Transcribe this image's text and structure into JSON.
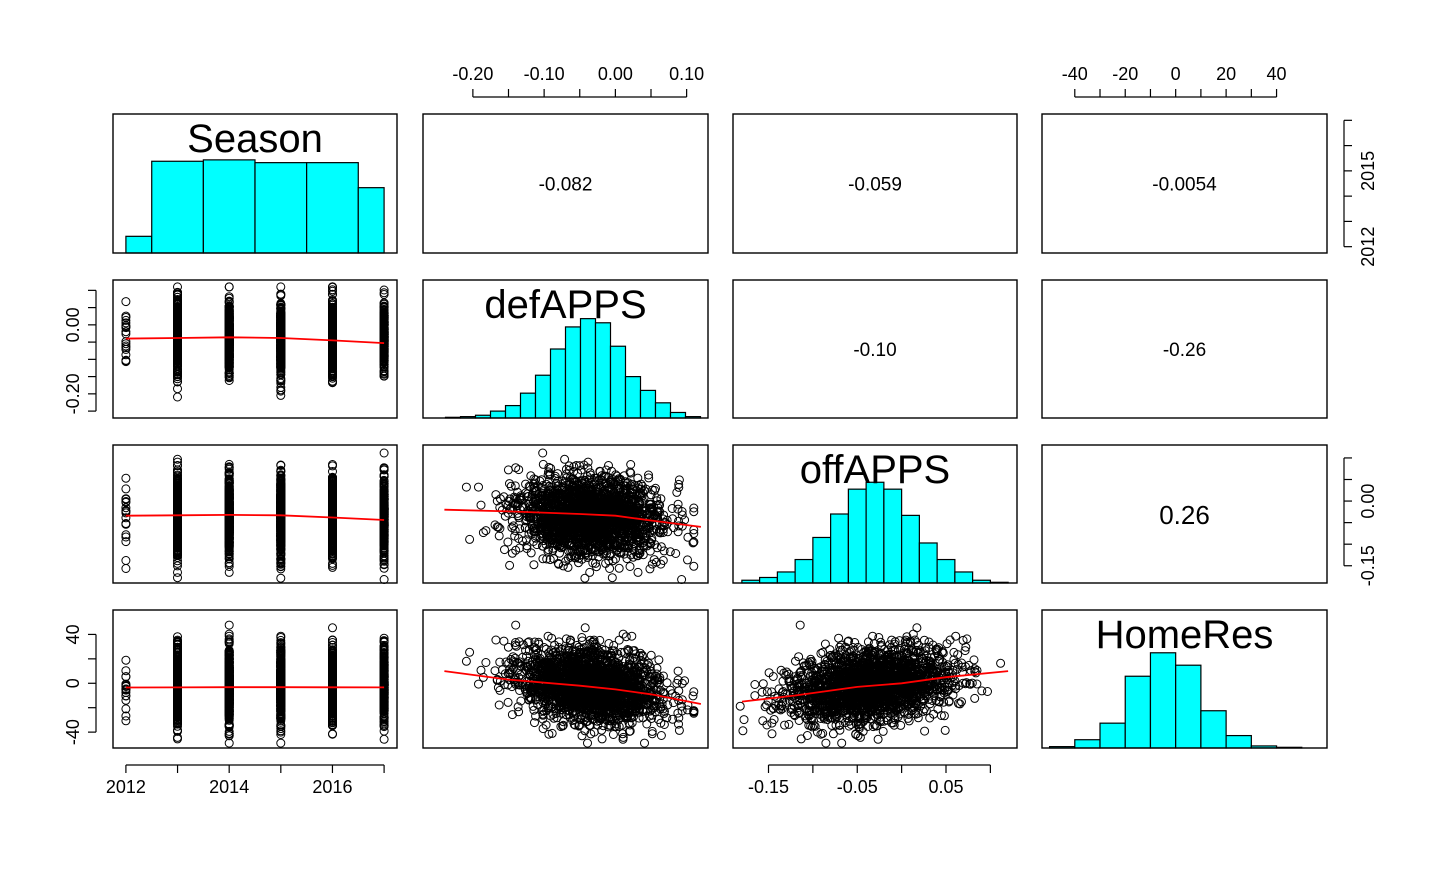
{
  "chart_data": {
    "type": "scatter",
    "variables": [
      "Season",
      "defAPPS",
      "offAPPS",
      "HomeRes"
    ],
    "colors": {
      "histogram_fill": "#00ffff",
      "smoother_line": "#ff0000",
      "points": "#000000"
    },
    "diagonal_histograms": [
      {
        "variable": "Season",
        "range": [
          2011.75,
          2017.25
        ],
        "bins": [
          {
            "x0": 2012,
            "x1": 2012.5,
            "height": 0.12
          },
          {
            "x0": 2012.5,
            "x1": 2013.5,
            "height": 0.66
          },
          {
            "x0": 2013.5,
            "x1": 2014.5,
            "height": 0.67
          },
          {
            "x0": 2014.5,
            "x1": 2015.5,
            "height": 0.65
          },
          {
            "x0": 2015.5,
            "x1": 2016.5,
            "height": 0.65
          },
          {
            "x0": 2016.5,
            "x1": 2017,
            "height": 0.47
          }
        ]
      },
      {
        "variable": "defAPPS",
        "range": [
          -0.25,
          0.13
        ],
        "bins": [
          {
            "x0": -0.22,
            "x1": -0.2,
            "height": 0.005
          },
          {
            "x0": -0.2,
            "x1": -0.18,
            "height": 0.01
          },
          {
            "x0": -0.18,
            "x1": -0.16,
            "height": 0.02
          },
          {
            "x0": -0.16,
            "x1": -0.14,
            "height": 0.05
          },
          {
            "x0": -0.14,
            "x1": -0.12,
            "height": 0.09
          },
          {
            "x0": -0.12,
            "x1": -0.1,
            "height": 0.18
          },
          {
            "x0": -0.1,
            "x1": -0.08,
            "height": 0.31
          },
          {
            "x0": -0.08,
            "x1": -0.06,
            "height": 0.5
          },
          {
            "x0": -0.06,
            "x1": -0.04,
            "height": 0.66
          },
          {
            "x0": -0.04,
            "x1": -0.02,
            "height": 0.72
          },
          {
            "x0": -0.02,
            "x1": 0.0,
            "height": 0.69
          },
          {
            "x0": 0.0,
            "x1": 0.02,
            "height": 0.52
          },
          {
            "x0": 0.02,
            "x1": 0.04,
            "height": 0.3
          },
          {
            "x0": 0.04,
            "x1": 0.06,
            "height": 0.2
          },
          {
            "x0": 0.06,
            "x1": 0.08,
            "height": 0.11
          },
          {
            "x0": 0.08,
            "x1": 0.1,
            "height": 0.04
          },
          {
            "x0": 0.1,
            "x1": 0.12,
            "height": 0.01
          }
        ]
      },
      {
        "variable": "offAPPS",
        "range": [
          -0.19,
          0.13
        ],
        "bins": [
          {
            "x0": -0.18,
            "x1": -0.16,
            "height": 0.02
          },
          {
            "x0": -0.16,
            "x1": -0.14,
            "height": 0.04
          },
          {
            "x0": -0.14,
            "x1": -0.12,
            "height": 0.08
          },
          {
            "x0": -0.12,
            "x1": -0.1,
            "height": 0.17
          },
          {
            "x0": -0.1,
            "x1": -0.08,
            "height": 0.33
          },
          {
            "x0": -0.08,
            "x1": -0.06,
            "height": 0.5
          },
          {
            "x0": -0.06,
            "x1": -0.04,
            "height": 0.68
          },
          {
            "x0": -0.04,
            "x1": -0.02,
            "height": 0.73
          },
          {
            "x0": -0.02,
            "x1": 0.0,
            "height": 0.68
          },
          {
            "x0": 0.0,
            "x1": 0.02,
            "height": 0.49
          },
          {
            "x0": 0.02,
            "x1": 0.04,
            "height": 0.29
          },
          {
            "x0": 0.04,
            "x1": 0.06,
            "height": 0.17
          },
          {
            "x0": 0.06,
            "x1": 0.08,
            "height": 0.08
          },
          {
            "x0": 0.08,
            "x1": 0.1,
            "height": 0.02
          },
          {
            "x0": 0.1,
            "x1": 0.12,
            "height": 0.005
          }
        ]
      },
      {
        "variable": "HomeRes",
        "range": [
          -53,
          60
        ],
        "bins": [
          {
            "x0": -50,
            "x1": -40,
            "height": 0.01
          },
          {
            "x0": -40,
            "x1": -30,
            "height": 0.06
          },
          {
            "x0": -30,
            "x1": -20,
            "height": 0.18
          },
          {
            "x0": -20,
            "x1": -10,
            "height": 0.52
          },
          {
            "x0": -10,
            "x1": 0,
            "height": 0.69
          },
          {
            "x0": 0,
            "x1": 10,
            "height": 0.6
          },
          {
            "x0": 10,
            "x1": 20,
            "height": 0.27
          },
          {
            "x0": 20,
            "x1": 30,
            "height": 0.09
          },
          {
            "x0": 30,
            "x1": 40,
            "height": 0.015
          },
          {
            "x0": 40,
            "x1": 50,
            "height": 0.005
          }
        ]
      }
    ],
    "correlations": [
      {
        "row": 0,
        "col": 1,
        "text": "-0.082",
        "large": false
      },
      {
        "row": 0,
        "col": 2,
        "text": "-0.059",
        "large": false
      },
      {
        "row": 0,
        "col": 3,
        "text": "-0.0054",
        "large": false
      },
      {
        "row": 1,
        "col": 2,
        "text": "-0.10",
        "large": false
      },
      {
        "row": 1,
        "col": 3,
        "text": "-0.26",
        "large": false
      },
      {
        "row": 2,
        "col": 3,
        "text": "0.26",
        "large": true
      }
    ],
    "smoothers": [
      {
        "row": 1,
        "col": 0,
        "points": [
          [
            2012,
            -0.04
          ],
          [
            2013,
            -0.038
          ],
          [
            2014,
            -0.036
          ],
          [
            2015,
            -0.038
          ],
          [
            2016,
            -0.045
          ],
          [
            2017,
            -0.053
          ]
        ]
      },
      {
        "row": 2,
        "col": 0,
        "points": [
          [
            2012,
            -0.034
          ],
          [
            2013,
            -0.033
          ],
          [
            2014,
            -0.032
          ],
          [
            2015,
            -0.033
          ],
          [
            2016,
            -0.038
          ],
          [
            2017,
            -0.044
          ]
        ]
      },
      {
        "row": 3,
        "col": 0,
        "points": [
          [
            2012,
            -3.5
          ],
          [
            2013,
            -3.4
          ],
          [
            2014,
            -3.2
          ],
          [
            2015,
            -3.2
          ],
          [
            2016,
            -3.3
          ],
          [
            2017,
            -3.4
          ]
        ]
      },
      {
        "row": 2,
        "col": 1,
        "points": [
          [
            -0.24,
            -0.02
          ],
          [
            -0.15,
            -0.024
          ],
          [
            -0.05,
            -0.03
          ],
          [
            0.0,
            -0.034
          ],
          [
            0.05,
            -0.045
          ],
          [
            0.12,
            -0.06
          ]
        ]
      },
      {
        "row": 3,
        "col": 1,
        "points": [
          [
            -0.24,
            10
          ],
          [
            -0.15,
            3
          ],
          [
            -0.05,
            -2
          ],
          [
            0.0,
            -5
          ],
          [
            0.05,
            -9
          ],
          [
            0.12,
            -17
          ]
        ]
      },
      {
        "row": 3,
        "col": 2,
        "points": [
          [
            -0.18,
            -15
          ],
          [
            -0.12,
            -10
          ],
          [
            -0.05,
            -3
          ],
          [
            0.0,
            0
          ],
          [
            0.05,
            5
          ],
          [
            0.12,
            10
          ]
        ]
      }
    ],
    "scatter_cloud": {
      "Season": {
        "values": [
          2012,
          2013,
          2014,
          2015,
          2016,
          2017
        ],
        "weights": [
          0.05,
          1,
          1,
          1,
          1,
          0.75
        ]
      },
      "defAPPS": {
        "mean": -0.035,
        "sd": 0.05,
        "min": -0.26,
        "max": 0.11
      },
      "offAPPS": {
        "mean": -0.035,
        "sd": 0.045,
        "min": -0.19,
        "max": 0.12
      },
      "HomeRes": {
        "mean": -2,
        "sd": 15,
        "min": -49,
        "max": 54
      },
      "correlations": {
        "def_off": -0.1,
        "def_home": -0.26,
        "off_home": 0.26
      },
      "n": 2200
    },
    "axes": {
      "top": [
        {
          "col": 1,
          "ticks": [
            -0.2,
            -0.15,
            -0.1,
            -0.05,
            0.0,
            0.05,
            0.1
          ],
          "labels": [
            "-0.20",
            "-0.10",
            "0.00",
            "0.10"
          ],
          "label_values": [
            -0.2,
            -0.1,
            0.0,
            0.1
          ]
        },
        {
          "col": 3,
          "ticks": [
            -40,
            -30,
            -20,
            -10,
            0,
            10,
            20,
            30,
            40
          ],
          "labels": [
            "-40",
            "-20",
            "0",
            "20",
            "40"
          ],
          "label_values": [
            -40,
            -20,
            0,
            20,
            40
          ]
        }
      ],
      "bottom": [
        {
          "col": 0,
          "ticks": [
            2012,
            2013,
            2014,
            2015,
            2016,
            2017
          ],
          "labels": [
            "2012",
            "2014",
            "2016"
          ],
          "label_values": [
            2012,
            2014,
            2016
          ]
        },
        {
          "col": 2,
          "ticks": [
            -0.15,
            -0.1,
            -0.05,
            0.0,
            0.05,
            0.1
          ],
          "labels": [
            "-0.15",
            "-0.05",
            "0.05"
          ],
          "label_values": [
            -0.15,
            -0.05,
            0.05
          ]
        }
      ],
      "left": [
        {
          "row": 1,
          "ticks": [
            -0.25,
            -0.2,
            -0.15,
            -0.1,
            -0.05,
            0.0,
            0.05,
            0.1
          ],
          "labels": [
            "-0.20",
            "0.00"
          ],
          "label_values": [
            -0.2,
            0.0
          ]
        },
        {
          "row": 3,
          "ticks": [
            -40,
            -20,
            0,
            20,
            40
          ],
          "labels": [
            "-40",
            "0",
            "40"
          ],
          "label_values": [
            -40,
            0,
            40
          ]
        }
      ],
      "right": [
        {
          "row": 0,
          "ticks": [
            2012,
            2013,
            2014,
            2015,
            2016,
            2017
          ],
          "labels": [
            "2012",
            "2015"
          ],
          "label_values": [
            2012,
            2015
          ]
        },
        {
          "row": 2,
          "ticks": [
            -0.15,
            -0.1,
            -0.05,
            0.0,
            0.05,
            0.1
          ],
          "labels": [
            "-0.15",
            "0.00"
          ],
          "label_values": [
            -0.15,
            0.0
          ]
        }
      ]
    }
  }
}
